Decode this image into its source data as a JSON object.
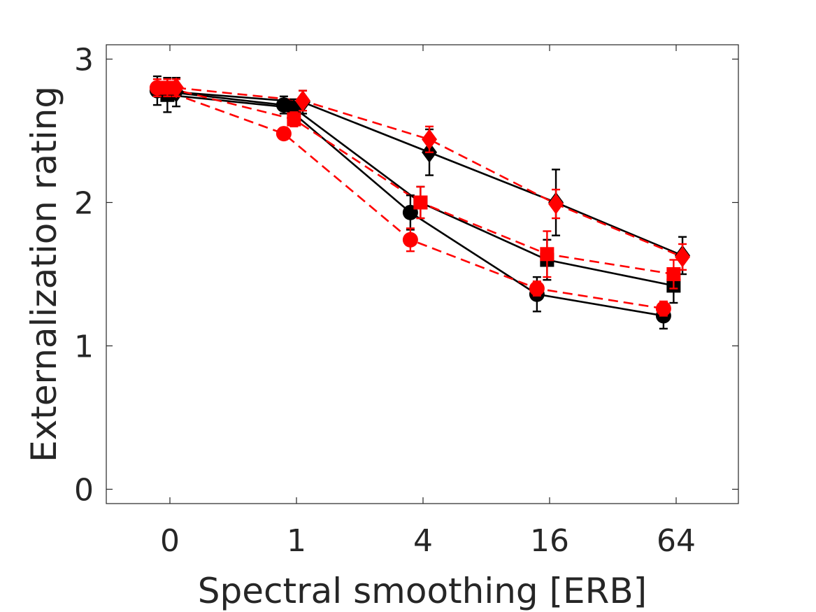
{
  "chart_data": {
    "type": "line",
    "title": "",
    "xlabel": "Spectral smoothing [ERB]",
    "ylabel": "Externalization rating",
    "categories": [
      "0",
      "1",
      "4",
      "16",
      "64"
    ],
    "ylim": [
      -0.1,
      3.1
    ],
    "yticks": [
      0,
      1,
      2,
      3
    ],
    "grid": false,
    "legend": "none",
    "colors": {
      "black": "#000000",
      "red": "#ff0000",
      "axis": "#262626"
    },
    "series": [
      {
        "color": "black",
        "line": "solid",
        "marker": "circle",
        "offset": -0.1,
        "values": [
          2.78,
          2.68,
          1.93,
          1.36,
          1.21
        ],
        "errors": [
          0.1,
          0.06,
          0.12,
          0.12,
          0.09
        ]
      },
      {
        "color": "black",
        "line": "solid",
        "marker": "square",
        "offset": -0.02,
        "values": [
          2.75,
          2.66,
          2.0,
          1.6,
          1.42
        ],
        "errors": [
          0.12,
          0.06,
          0.11,
          0.14,
          0.12
        ]
      },
      {
        "color": "black",
        "line": "solid",
        "marker": "diamond",
        "offset": 0.05,
        "values": [
          2.77,
          2.7,
          2.35,
          2.0,
          1.63
        ],
        "errors": [
          0.1,
          0.08,
          0.16,
          0.23,
          0.13
        ]
      },
      {
        "color": "red",
        "line": "dashed",
        "marker": "circle",
        "offset": -0.1,
        "values": [
          2.8,
          2.48,
          1.74,
          1.4,
          1.26
        ],
        "errors": [
          0.06,
          0.04,
          0.08,
          0.05,
          0.05
        ]
      },
      {
        "color": "red",
        "line": "dashed",
        "marker": "square",
        "offset": -0.02,
        "values": [
          2.8,
          2.58,
          2.0,
          1.64,
          1.5
        ],
        "errors": [
          0.06,
          0.05,
          0.11,
          0.16,
          0.1
        ]
      },
      {
        "color": "red",
        "line": "dashed",
        "marker": "diamond",
        "offset": 0.05,
        "values": [
          2.8,
          2.71,
          2.44,
          1.99,
          1.62
        ],
        "errors": [
          0.06,
          0.07,
          0.09,
          0.1,
          0.09
        ]
      }
    ]
  }
}
